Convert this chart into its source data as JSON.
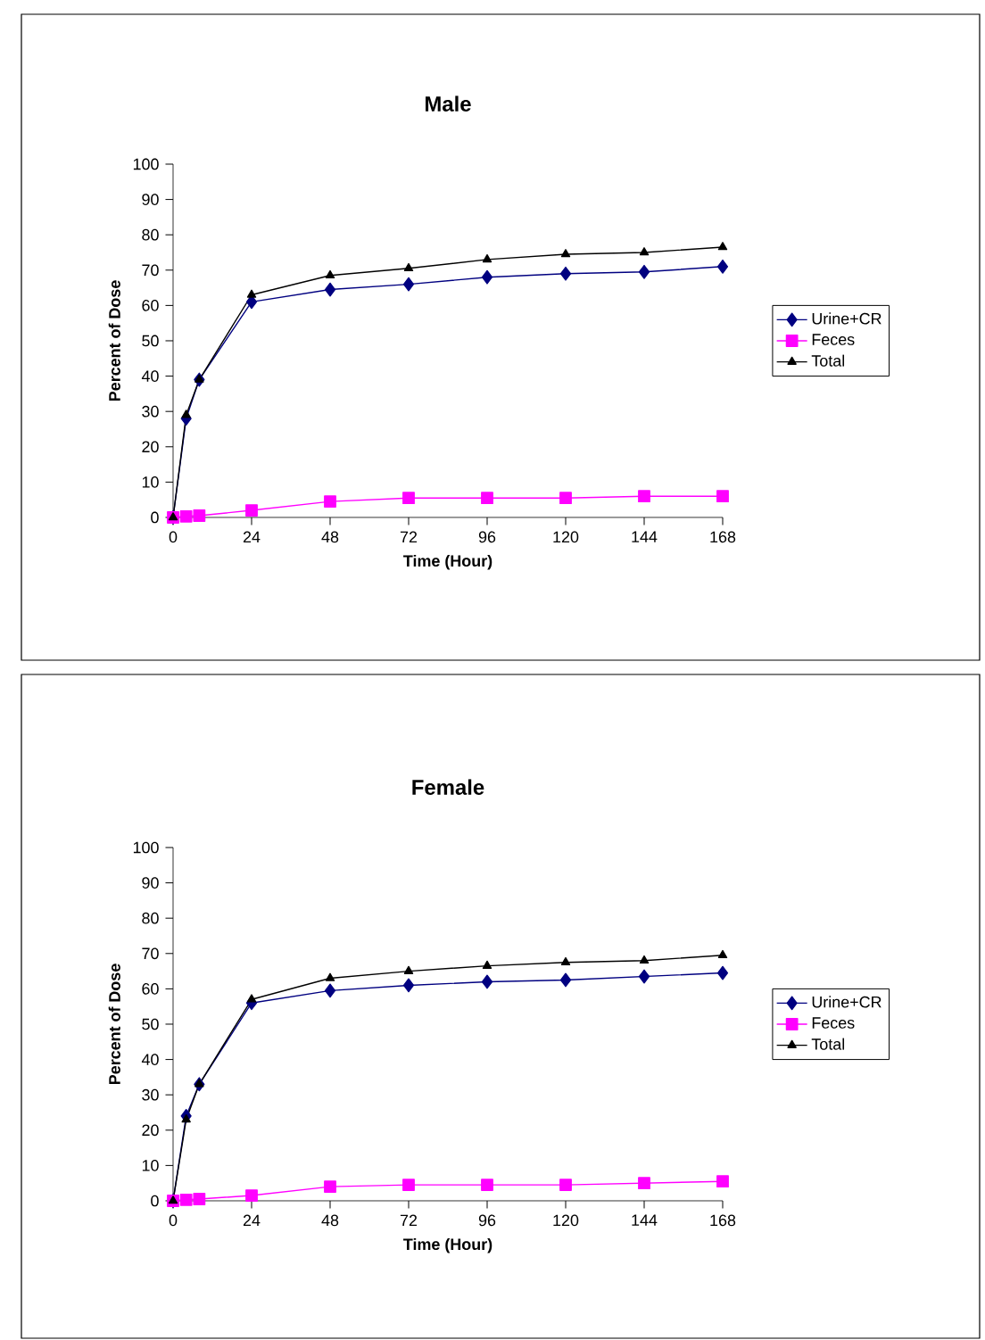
{
  "chart_data": [
    {
      "type": "line",
      "title": "Male",
      "xlabel": "Time (Hour)",
      "ylabel": "Percent of Dose",
      "x": [
        0,
        4,
        8,
        24,
        48,
        72,
        96,
        120,
        144,
        168
      ],
      "xlim": [
        0,
        168
      ],
      "xticks": [
        0,
        24,
        48,
        72,
        96,
        120,
        144,
        168
      ],
      "ylim": [
        0,
        100
      ],
      "yticks": [
        0,
        10,
        20,
        30,
        40,
        50,
        60,
        70,
        80,
        90,
        100
      ],
      "legend": "right",
      "grid": false,
      "series": [
        {
          "name": "Urine+CR",
          "color": "#000080",
          "marker": "diamond",
          "values": [
            0,
            28,
            39,
            61,
            64.5,
            66,
            68,
            69,
            69.5,
            71
          ]
        },
        {
          "name": "Feces",
          "color": "#ff00ff",
          "marker": "square",
          "values": [
            0,
            0.3,
            0.5,
            2,
            4.5,
            5.5,
            5.5,
            5.5,
            6,
            6
          ]
        },
        {
          "name": "Total",
          "color": "#000000",
          "marker": "triangle",
          "values": [
            0,
            29,
            39,
            63,
            68.5,
            70.5,
            73,
            74.5,
            75,
            76.5
          ]
        }
      ]
    },
    {
      "type": "line",
      "title": "Female",
      "xlabel": "Time (Hour)",
      "ylabel": "Percent of Dose",
      "x": [
        0,
        4,
        8,
        24,
        48,
        72,
        96,
        120,
        144,
        168
      ],
      "xlim": [
        0,
        168
      ],
      "xticks": [
        0,
        24,
        48,
        72,
        96,
        120,
        144,
        168
      ],
      "ylim": [
        0,
        100
      ],
      "yticks": [
        0,
        10,
        20,
        30,
        40,
        50,
        60,
        70,
        80,
        90,
        100
      ],
      "legend": "right",
      "grid": false,
      "series": [
        {
          "name": "Urine+CR",
          "color": "#000080",
          "marker": "diamond",
          "values": [
            0,
            24,
            33,
            56,
            59.5,
            61,
            62,
            62.5,
            63.5,
            64.5
          ]
        },
        {
          "name": "Feces",
          "color": "#ff00ff",
          "marker": "square",
          "values": [
            0,
            0.3,
            0.5,
            1.5,
            4,
            4.5,
            4.5,
            4.5,
            5,
            5.5
          ]
        },
        {
          "name": "Total",
          "color": "#000000",
          "marker": "triangle",
          "values": [
            0,
            23,
            33,
            57,
            63,
            65,
            66.5,
            67.5,
            68,
            69.5
          ]
        }
      ]
    }
  ]
}
